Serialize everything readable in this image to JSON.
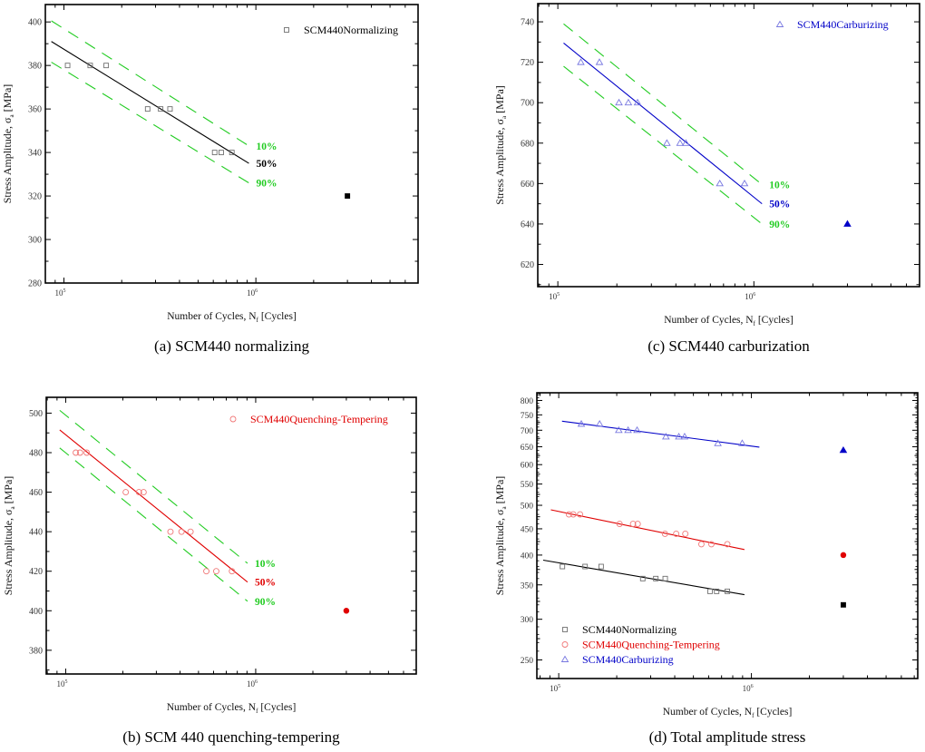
{
  "colors": {
    "normalizing_line": "#000000",
    "normalizing_marker": "#707070",
    "qt_line": "#e00000",
    "qt_marker": "#f07878",
    "carb_line": "#0000c8",
    "carb_marker": "#7878e0",
    "band": "#22cc22"
  },
  "chart_data": [
    {
      "id": "a",
      "type": "scatter",
      "caption": "(a) SCM440 normalizing",
      "xlabel": {
        "main": "Number of Cycles,  N",
        "sub": "f",
        "unit": " [Cycles]"
      },
      "ylabel": {
        "main": "Stress Amplitude,  σ",
        "sub": "a",
        "unit": "  [MPa]"
      },
      "xscale": "log",
      "yscale": "linear",
      "xlim": [
        80000,
        7000000
      ],
      "ylim": [
        280,
        408
      ],
      "xticks": [
        {
          "value": 100000,
          "base": "10",
          "exp": "5"
        },
        {
          "value": 1000000,
          "base": "10",
          "exp": "6"
        }
      ],
      "yticks": [
        280,
        300,
        320,
        340,
        360,
        380,
        400
      ],
      "legend": {
        "placement": "top-right",
        "entries": [
          {
            "label": "SCM440Normalizing",
            "marker": "square-open",
            "color_key": "normalizing_marker",
            "text_color": "#000000"
          }
        ]
      },
      "series": [
        {
          "name": "SCM440Normalizing",
          "marker": "square-open",
          "color_key": "normalizing_marker",
          "points": [
            [
              104500,
              380
            ],
            [
              137000,
              380
            ],
            [
              166000,
              380
            ],
            [
              273000,
              360
            ],
            [
              319000,
              360
            ],
            [
              357000,
              360
            ],
            [
              610000,
              340
            ],
            [
              660000,
              340
            ],
            [
              750000,
              340
            ]
          ]
        },
        {
          "marker": "square-filled",
          "color_key": "normalizing_line",
          "points": [
            [
              3000000,
              320
            ]
          ]
        }
      ],
      "bands": [
        {
          "label": "10%",
          "color_key": "band",
          "dashed": true,
          "points": [
            [
              86000,
              400.5
            ],
            [
              920000,
              343
            ]
          ]
        },
        {
          "label": "50%",
          "color_key": "normalizing_line",
          "dashed": false,
          "points": [
            [
              86000,
              391
            ],
            [
              920000,
              335
            ]
          ]
        },
        {
          "label": "90%",
          "color_key": "band",
          "dashed": true,
          "points": [
            [
              86000,
              381.5
            ],
            [
              920000,
              326
            ]
          ]
        }
      ]
    },
    {
      "id": "c",
      "type": "scatter",
      "caption": "(c) SCM440 carburization",
      "xlabel": {
        "main": "Number of Cycles,  N",
        "sub": "f",
        "unit": " [Cycles]"
      },
      "ylabel": {
        "main": "Stress Amplitude,  σ",
        "sub": "a",
        "unit": "  [MPa]"
      },
      "xscale": "log",
      "yscale": "linear",
      "xlim": [
        79000,
        7000000
      ],
      "ylim": [
        609,
        749
      ],
      "xticks": [
        {
          "value": 100000,
          "base": "10",
          "exp": "5"
        },
        {
          "value": 1000000,
          "base": "10",
          "exp": "6"
        }
      ],
      "yticks": [
        620,
        640,
        660,
        680,
        700,
        720,
        740
      ],
      "legend": {
        "placement": "top-right",
        "entries": [
          {
            "label": "SCM440Carburizing",
            "marker": "triangle-open",
            "color_key": "carb_marker",
            "text_color": "#0000c8"
          }
        ]
      },
      "series": [
        {
          "name": "SCM440Carburizing",
          "marker": "triangle-open",
          "color_key": "carb_marker",
          "points": [
            [
              131000,
              720
            ],
            [
              163000,
              720
            ],
            [
              205000,
              700
            ],
            [
              229000,
              700
            ],
            [
              255000,
              700
            ],
            [
              360000,
              680
            ],
            [
              420000,
              680
            ],
            [
              450000,
              680
            ],
            [
              670000,
              660
            ],
            [
              896000,
              660
            ]
          ]
        },
        {
          "marker": "triangle-filled",
          "color_key": "carb_line",
          "points": [
            [
              3000000,
              640
            ]
          ]
        }
      ],
      "bands": [
        {
          "label": "10%",
          "color_key": "band",
          "dashed": true,
          "points": [
            [
              107000,
              739
            ],
            [
              1100000,
              659.5
            ]
          ]
        },
        {
          "label": "50%",
          "color_key": "carb_line",
          "dashed": false,
          "points": [
            [
              107000,
              729.5
            ],
            [
              1100000,
              650
            ]
          ]
        },
        {
          "label": "90%",
          "color_key": "band",
          "dashed": true,
          "points": [
            [
              107000,
              718
            ],
            [
              1100000,
              640
            ]
          ]
        }
      ]
    },
    {
      "id": "b",
      "type": "scatter",
      "caption": "(b) SCM 440 quenching-tempering",
      "xlabel": {
        "main": "Number of Cycles,  N",
        "sub": "f",
        "unit": " [Cycles]"
      },
      "ylabel": {
        "main": "Stress Amplitude,  σ",
        "sub": "a",
        "unit": "  [MPa]"
      },
      "xscale": "log",
      "yscale": "linear",
      "xlim": [
        79000,
        7000000
      ],
      "ylim": [
        368,
        508
      ],
      "xticks": [
        {
          "value": 100000,
          "base": "10",
          "exp": "5"
        },
        {
          "value": 1000000,
          "base": "10",
          "exp": "6"
        }
      ],
      "yticks": [
        380,
        400,
        420,
        440,
        460,
        480,
        500
      ],
      "legend": {
        "placement": "top-right",
        "entries": [
          {
            "label": "SCM440Quenching-Tempering",
            "marker": "circle-open",
            "color_key": "qt_marker",
            "text_color": "#e00000"
          }
        ]
      },
      "series": [
        {
          "name": "SCM440Quenching-Tempering",
          "marker": "circle-open",
          "color_key": "qt_marker",
          "points": [
            [
              113000,
              480
            ],
            [
              119000,
              480
            ],
            [
              129000,
              480
            ],
            [
              207000,
              460
            ],
            [
              243000,
              460
            ],
            [
              257000,
              460
            ],
            [
              356000,
              440
            ],
            [
              407000,
              440
            ],
            [
              454000,
              440
            ],
            [
              550000,
              420
            ],
            [
              620000,
              420
            ],
            [
              750000,
              420
            ]
          ]
        },
        {
          "marker": "circle-filled",
          "color_key": "qt_line",
          "points": [
            [
              3000000,
              400
            ]
          ]
        }
      ],
      "bands": [
        {
          "label": "10%",
          "color_key": "band",
          "dashed": true,
          "points": [
            [
              93000,
              501.4
            ],
            [
              906000,
              424
            ]
          ]
        },
        {
          "label": "50%",
          "color_key": "qt_line",
          "dashed": false,
          "points": [
            [
              93000,
              491.5
            ],
            [
              906000,
              414.5
            ]
          ]
        },
        {
          "label": "90%",
          "color_key": "band",
          "dashed": true,
          "points": [
            [
              93000,
              482.4
            ],
            [
              906000,
              404.8
            ]
          ]
        }
      ]
    },
    {
      "id": "d",
      "type": "scatter",
      "caption": "(d) Total amplitude stress",
      "xlabel": {
        "main": "Number of Cycles,  N",
        "sub": "f",
        "unit": " [Cycles]"
      },
      "ylabel": {
        "main": "Stress Amplitude,  σ",
        "sub": "a",
        "unit": "  [MPa]"
      },
      "xscale": "log",
      "yscale": "log",
      "xlim": [
        77000,
        7300000
      ],
      "ylim": [
        230,
        828
      ],
      "xticks": [
        {
          "value": 100000,
          "base": "10",
          "exp": "5"
        },
        {
          "value": 1000000,
          "base": "10",
          "exp": "6"
        }
      ],
      "yticks": [
        250,
        300,
        350,
        400,
        450,
        500,
        550,
        600,
        650,
        700,
        750,
        800
      ],
      "legend": {
        "placement": "bottom-left",
        "entries": [
          {
            "label": "SCM440Normalizing",
            "marker": "square-open",
            "color_key": "normalizing_marker",
            "text_color": "#000000"
          },
          {
            "label": "SCM440Quenching-Tempering",
            "marker": "circle-open",
            "color_key": "qt_marker",
            "text_color": "#e00000"
          },
          {
            "label": "SCM440Carburizing",
            "marker": "triangle-open",
            "color_key": "carb_marker",
            "text_color": "#0000c8"
          }
        ]
      },
      "series": [
        {
          "name": "SCM440Normalizing",
          "marker": "square-open",
          "color_key": "normalizing_marker",
          "points": [
            [
              104500,
              380
            ],
            [
              137000,
              380
            ],
            [
              166000,
              380
            ],
            [
              273000,
              360
            ],
            [
              319000,
              360
            ],
            [
              357000,
              360
            ],
            [
              610000,
              340
            ],
            [
              660000,
              340
            ],
            [
              750000,
              340
            ]
          ]
        },
        {
          "name": "SCM440Quenching-Tempering",
          "marker": "circle-open",
          "color_key": "qt_marker",
          "points": [
            [
              113000,
              480
            ],
            [
              119000,
              480
            ],
            [
              129000,
              480
            ],
            [
              207000,
              460
            ],
            [
              243000,
              460
            ],
            [
              257000,
              460
            ],
            [
              356000,
              440
            ],
            [
              407000,
              440
            ],
            [
              454000,
              440
            ],
            [
              550000,
              420
            ],
            [
              620000,
              420
            ],
            [
              750000,
              420
            ]
          ]
        },
        {
          "name": "SCM440Carburizing",
          "marker": "triangle-open",
          "color_key": "carb_marker",
          "points": [
            [
              131000,
              720
            ],
            [
              163000,
              720
            ],
            [
              205000,
              700
            ],
            [
              229000,
              700
            ],
            [
              255000,
              700
            ],
            [
              360000,
              680
            ],
            [
              420000,
              680
            ],
            [
              450000,
              680
            ],
            [
              670000,
              660
            ],
            [
              896000,
              660
            ]
          ]
        },
        {
          "marker": "square-filled",
          "color_key": "normalizing_line",
          "points": [
            [
              3000000,
              320
            ]
          ]
        },
        {
          "marker": "circle-filled",
          "color_key": "qt_line",
          "points": [
            [
              3000000,
              400
            ]
          ]
        },
        {
          "marker": "triangle-filled",
          "color_key": "carb_line",
          "points": [
            [
              3000000,
              640
            ]
          ]
        }
      ],
      "bands": [
        {
          "color_key": "normalizing_line",
          "dashed": false,
          "points": [
            [
              83000,
              391
            ],
            [
              920000,
              335
            ]
          ]
        },
        {
          "color_key": "qt_line",
          "dashed": false,
          "points": [
            [
              91000,
              490
            ],
            [
              920000,
              410
            ]
          ]
        },
        {
          "color_key": "carb_line",
          "dashed": false,
          "points": [
            [
              104000,
              729
            ],
            [
              1100000,
              649
            ]
          ]
        }
      ]
    }
  ]
}
